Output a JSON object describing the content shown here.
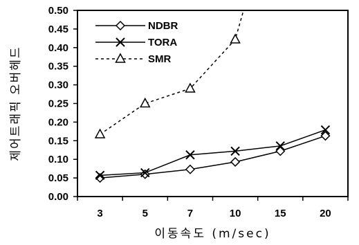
{
  "chart_data": {
    "type": "line",
    "title": "",
    "xlabel": "이동속도 (m/sec)",
    "ylabel": "제어트래픽 오버헤드",
    "categories": [
      "3",
      "5",
      "7",
      "10",
      "15",
      "20"
    ],
    "ylim": [
      0,
      0.5
    ],
    "yticks": [
      "0.00",
      "0.05",
      "0.10",
      "0.15",
      "0.20",
      "0.25",
      "0.30",
      "0.35",
      "0.40",
      "0.45",
      "0.50"
    ],
    "grid": false,
    "legend_position": "top-left",
    "series": [
      {
        "name": "NDBR",
        "values": [
          0.05,
          0.06,
          0.073,
          0.093,
          0.122,
          0.163
        ],
        "marker": "diamond",
        "line": "solid",
        "color": "#000000"
      },
      {
        "name": "TORA",
        "values": [
          0.057,
          0.064,
          0.112,
          0.122,
          0.136,
          0.179
        ],
        "marker": "x",
        "line": "solid",
        "color": "#000000"
      },
      {
        "name": "SMR",
        "values": [
          0.167,
          0.25,
          0.29,
          0.422,
          null,
          null
        ],
        "marker": "triangle",
        "line": "dotted",
        "color": "#000000",
        "continues_beyond_axis": true
      }
    ]
  }
}
